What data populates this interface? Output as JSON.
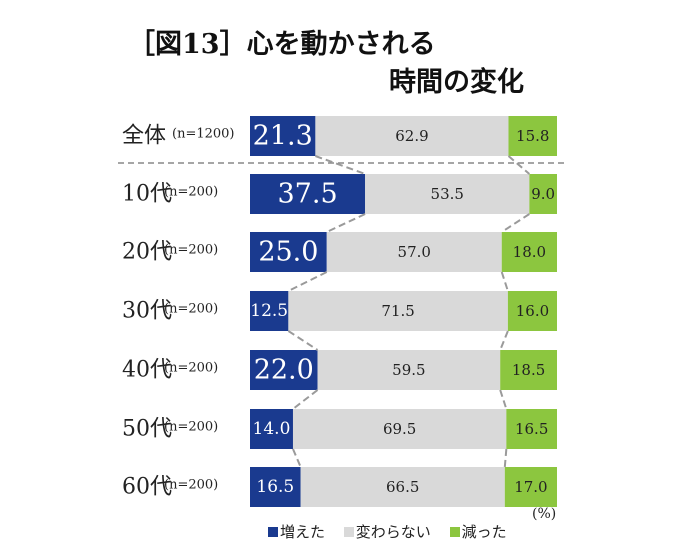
{
  "chart_data": {
    "type": "bar",
    "stacked": true,
    "orientation": "horizontal",
    "title": "［図13］心を動かされる",
    "subtitle": "時間の変化",
    "unit": "(%)",
    "categories": [
      "全体",
      "10代",
      "20代",
      "30代",
      "40代",
      "50代",
      "60代"
    ],
    "sample_sizes": [
      "(n=1200)",
      "(n=200)",
      "(n=200)",
      "(n=200)",
      "(n=200)",
      "(n=200)",
      "(n=200)"
    ],
    "series": [
      {
        "name": "増えた",
        "color": "#1a3a8f",
        "values": [
          21.3,
          37.5,
          25.0,
          12.5,
          22.0,
          14.0,
          16.5
        ]
      },
      {
        "name": "変わらない",
        "color": "#d9d9d9",
        "values": [
          62.9,
          53.5,
          57.0,
          71.5,
          59.5,
          69.5,
          66.5
        ]
      },
      {
        "name": "減った",
        "color": "#8cc63f",
        "values": [
          15.8,
          9.0,
          18.0,
          16.0,
          18.5,
          16.5,
          17.0
        ]
      }
    ],
    "xlim": [
      0,
      100
    ],
    "legend_position": "bottom"
  }
}
